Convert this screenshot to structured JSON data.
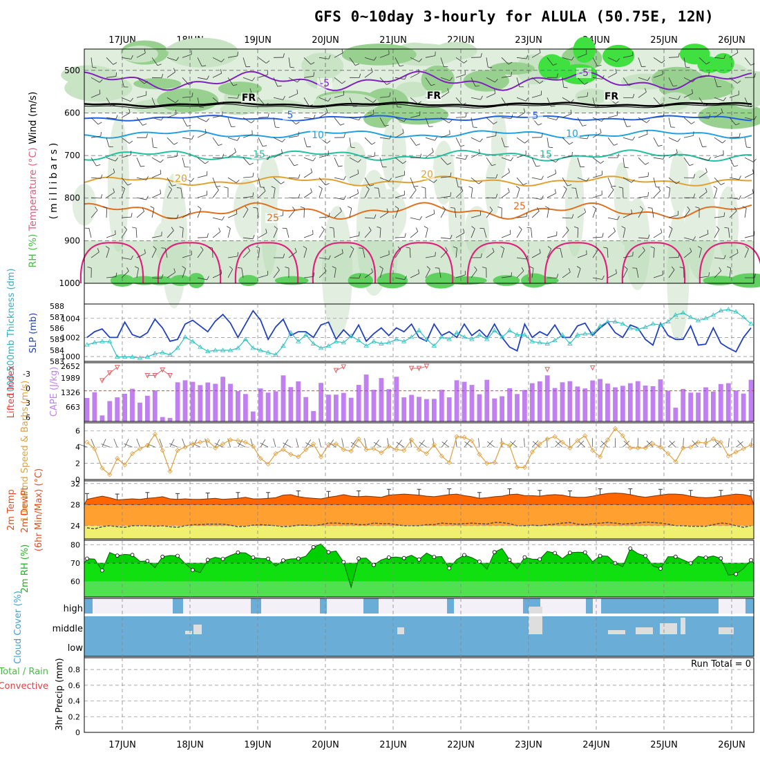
{
  "title": "GFS 0~10day 3-hourly for ALULA (50.75E, 12N)",
  "chart_data": [
    {
      "type": "heatmap",
      "panel": "upper-air",
      "ylabel_parts": [
        {
          "text": "RH (%)",
          "color": "#40c040"
        },
        {
          "text": "Temperature (°C)",
          "color": "#e06080"
        },
        {
          "text": "Wind (m/s)",
          "color": "#000000"
        },
        {
          "text": "(millibars)",
          "color": "#000000"
        }
      ],
      "yticks": [
        500,
        600,
        700,
        800,
        900,
        1000
      ],
      "ylim": [
        450,
        1000
      ],
      "x": [
        "17JUN",
        "18JUN",
        "19JUN",
        "20JUN",
        "21JUN",
        "22JUN",
        "23JUN",
        "24JUN",
        "25JUN",
        "26JUN"
      ],
      "isotherm_labels": [
        "-5",
        "-5",
        "FR",
        "FR",
        "FR",
        "5",
        "5",
        "10",
        "10",
        "15",
        "15",
        "20",
        "20",
        "25",
        "25"
      ],
      "isotherms_mb": {
        "m5": 525,
        "fr": 580,
        "p5": 612,
        "p10": 650,
        "p15": 700,
        "p20": 760,
        "p25": 830
      }
    },
    {
      "type": "line",
      "panel": "slp-thickness",
      "ylabel_left": "1000-500mb Thickness (dm)",
      "ylabel_right": "SLP (mb)",
      "thickness_ticks": [
        583,
        584,
        585,
        586,
        587,
        588
      ],
      "slp_ticks": [
        1000,
        1002,
        1004
      ],
      "series": [
        {
          "name": "SLP",
          "color": "#2040c0",
          "ylim": [
            999.5,
            1005.5
          ],
          "values": [
            1002.0,
            1002.6,
            1002.9,
            1002.0,
            1002.0,
            1003.6,
            1002.3,
            1002.0,
            1002.5,
            1003.9,
            1003.0,
            1001.6,
            1001.8,
            1003.4,
            1003.8,
            1003.2,
            1002.6,
            1003.7,
            1004.4,
            1003.5,
            1002.0,
            1003.4,
            1004.8,
            1003.8,
            1001.8,
            1003.1,
            1003.9,
            1002.2,
            1002.6,
            1002.6,
            1002.0,
            1003.3,
            1003.6,
            1001.8,
            1002.8,
            1002.0,
            1003.3,
            1001.6,
            1002.4,
            1003.0,
            1002.2,
            1003.0,
            1002.6,
            1003.4,
            1002.0,
            1001.6,
            1003.4,
            1002.2,
            1002.6,
            1002.0,
            1003.4,
            1002.2,
            1002.8,
            1002.0,
            1003.4,
            1002.0,
            1001.0,
            1000.6,
            1003.4,
            1002.0,
            1002.6,
            1002.2,
            1003.3,
            1002.0,
            1002.0,
            1003.2,
            1003.5,
            1002.2,
            1003.0,
            1003.6,
            1002.5,
            1002.0,
            1003.3,
            1003.0,
            1001.8,
            1001.2,
            1003.5,
            1002.2,
            1001.8,
            1001.8,
            1003.2,
            1001.2,
            1001.3,
            1003.0,
            1001.4,
            1000.9,
            1000.5,
            1002.0,
            1003.0
          ]
        },
        {
          "name": "1000-500mb Thickness",
          "color": "#30c0c0",
          "ylim": [
            583.0,
            588.2
          ],
          "values": [
            584.5,
            584.7,
            584.8,
            584.8,
            583.4,
            583.4,
            583.4,
            583.3,
            583.4,
            583.7,
            583.8,
            583.6,
            584.2,
            585.2,
            584.8,
            584.3,
            583.9,
            584.0,
            584.0,
            584.0,
            584.2,
            585.0,
            584.2,
            584.0,
            583.8,
            583.6,
            584.4,
            585.6,
            584.8,
            585.4,
            584.6,
            584.2,
            584.4,
            584.8,
            584.7,
            585.3,
            584.9,
            584.4,
            584.8,
            584.6,
            584.7,
            585.0,
            584.8,
            585.2,
            585.8,
            585.0,
            584.4,
            585.2,
            585.0,
            585.6,
            585.2,
            585.0,
            585.4,
            585.0,
            585.8,
            585.2,
            585.8,
            585.4,
            585.4,
            584.8,
            584.7,
            584.6,
            584.9,
            585.4,
            584.6,
            585.4,
            585.5,
            585.5,
            586.2,
            586.6,
            586.6,
            586.4,
            586.0,
            585.9,
            586.1,
            586.4,
            586.3,
            586.6,
            587.2,
            587.4,
            587.0,
            586.7,
            586.9,
            587.2,
            587.6,
            587.7,
            587.5,
            587.0,
            586.4
          ]
        }
      ]
    },
    {
      "type": "bar",
      "panel": "cape-li",
      "ylabel_left": "Lifted Index",
      "ylabel_right": "CAPE (J/kg)",
      "li_ticks": [
        "-3",
        "0",
        "3",
        "6"
      ],
      "cape_ticks": [
        "663",
        "1326",
        "1989",
        "2652"
      ],
      "series": [
        {
          "name": "CAPE",
          "color": "#c080f0",
          "ylim": [
            0,
            2652
          ],
          "values": [
            1060,
            1320,
            270,
            920,
            1090,
            1250,
            1480,
            850,
            1160,
            1400,
            200,
            160,
            1770,
            1860,
            1790,
            1640,
            1760,
            1700,
            2020,
            1700,
            1370,
            1240,
            450,
            1490,
            1300,
            1360,
            2080,
            1550,
            1810,
            1100,
            470,
            1740,
            1210,
            1210,
            1290,
            1070,
            1650,
            2120,
            1430,
            1960,
            1460,
            2020,
            1090,
            1200,
            1110,
            1010,
            1020,
            1430,
            1090,
            1860,
            1790,
            1650,
            1230,
            1880,
            1040,
            1140,
            1500,
            1240,
            1420,
            1730,
            1810,
            2080,
            1510,
            1770,
            1820,
            1580,
            1490,
            1850,
            1920,
            1710,
            1540,
            1610,
            1730,
            1820,
            1620,
            1590,
            1900,
            1390,
            620,
            1470,
            1300,
            1300,
            1540,
            1350,
            1690,
            1730,
            1400,
            1260,
            1880
          ]
        },
        {
          "name": "Lifted Index",
          "color": "#e06060",
          "ylim": [
            6,
            -5.5
          ],
          "values": [
            null,
            null,
            -2.0,
            -3.5,
            -4.6,
            null,
            null,
            null,
            -3.0,
            -3.0,
            -4.1,
            -3.0,
            null,
            null,
            null,
            null,
            null,
            null,
            null,
            null,
            null,
            null,
            null,
            null,
            null,
            null,
            null,
            null,
            null,
            null,
            null,
            null,
            null,
            -4.0,
            -4.7,
            null,
            null,
            null,
            null,
            null,
            null,
            null,
            null,
            -4.4,
            -4.4,
            -4.8,
            null,
            null,
            null,
            null,
            null,
            null,
            null,
            null,
            null,
            null,
            null,
            null,
            null,
            null,
            null,
            -4.2,
            null,
            null,
            null,
            null,
            null,
            -4.5,
            null,
            null,
            null,
            null,
            null,
            null,
            null,
            null,
            null,
            null,
            null,
            null,
            null,
            null,
            null,
            null,
            null,
            null,
            null,
            null,
            null
          ]
        }
      ]
    },
    {
      "type": "line",
      "panel": "wind-10m",
      "ylabel": "10m Wind Speed & Barbs (m/s)",
      "yticks": [
        "0",
        "2",
        "4",
        "6"
      ],
      "ylim": [
        0,
        7
      ],
      "series": [
        {
          "name": "10m Wind Speed",
          "color": "#e0a040",
          "values": [
            4.6,
            3.8,
            1.4,
            0.6,
            2.6,
            1.8,
            3.2,
            3.8,
            4.2,
            5.6,
            3.6,
            1.0,
            3.6,
            4.0,
            4.4,
            4.6,
            4.8,
            3.9,
            4.4,
            4.9,
            4.8,
            4.6,
            4.1,
            2.6,
            1.9,
            3.2,
            3.7,
            3.1,
            2.8,
            3.7,
            4.4,
            2.8,
            4.3,
            4.4,
            3.7,
            3.5,
            5.0,
            3.7,
            3.8,
            3.3,
            4.1,
            3.7,
            3.6,
            4.9,
            3.7,
            3.2,
            4.3,
            2.9,
            2.1,
            5.3,
            5.2,
            4.8,
            3.1,
            2.0,
            2.1,
            4.5,
            4.2,
            1.5,
            1.5,
            3.4,
            4.4,
            5.0,
            5.3,
            4.6,
            3.9,
            4.8,
            5.4,
            3.6,
            2.8,
            4.9,
            6.3,
            5.4,
            3.9,
            3.9,
            3.9,
            4.4,
            4.0,
            3.2,
            2.2,
            3.9,
            4.0,
            4.6,
            4.5,
            5.0,
            4.6,
            2.9,
            3.4,
            3.8,
            4.3
          ]
        }
      ]
    },
    {
      "type": "area",
      "panel": "temp-2m",
      "ylabel": "2m Temp 2m DewPt (6hr Min/Max) (°C)",
      "yticks": [
        "24",
        "28",
        "32"
      ],
      "ylim": [
        21.5,
        32.5
      ],
      "series": [
        {
          "name": "2m Temp",
          "color": "#ff6600",
          "values": [
            29.0,
            29.3,
            29.6,
            29.3,
            28.9,
            29.0,
            29.1,
            29.0,
            29.2,
            29.3,
            29.5,
            29.1,
            29.0,
            29.1,
            29.0,
            29.0,
            29.1,
            29.2,
            29.0,
            29.1,
            29.2,
            29.4,
            29.1,
            29.1,
            29.2,
            29.3,
            29.8,
            29.9,
            29.5,
            29.3,
            29.2,
            29.1,
            29.4,
            29.6,
            29.9,
            29.6,
            29.5,
            29.6,
            29.5,
            29.4,
            29.8,
            29.9,
            30.0,
            29.9,
            29.8,
            29.6,
            29.5,
            29.7,
            29.9,
            30.0,
            29.7,
            29.5,
            29.2,
            29.3,
            29.5,
            29.6,
            29.9,
            30.0,
            29.7,
            29.7,
            29.6,
            29.8,
            29.9,
            29.8,
            29.5,
            29.4,
            29.4,
            29.6,
            29.9,
            30.1,
            30.2,
            30.1,
            29.9,
            29.6,
            29.4,
            29.6,
            29.8,
            30.0,
            30.0,
            29.9,
            29.6,
            29.4,
            29.3,
            29.4,
            29.6,
            29.8,
            30.0,
            29.9,
            29.6
          ]
        },
        {
          "name": "2m DewPt",
          "color": "#505050",
          "values": [
            23.6,
            23.4,
            23.8,
            24.0,
            23.8,
            23.7,
            24.0,
            24.0,
            24.0,
            23.9,
            24.0,
            23.8,
            23.7,
            24.0,
            24.2,
            24.2,
            24.3,
            24.3,
            24.3,
            24.1,
            23.8,
            23.9,
            24.1,
            24.2,
            24.1,
            24.0,
            23.8,
            23.9,
            24.1,
            24.1,
            24.0,
            24.2,
            24.5,
            24.5,
            24.4,
            24.4,
            24.2,
            24.2,
            24.5,
            24.4,
            24.4,
            24.2,
            24.0,
            24.0,
            24.0,
            24.2,
            24.2,
            24.5,
            24.4,
            24.3,
            24.4,
            24.5,
            24.4,
            24.3,
            24.6,
            24.6,
            24.4,
            24.0,
            24.0,
            24.1,
            24.0,
            24.2,
            24.3,
            24.5,
            24.6,
            24.3,
            24.2,
            24.4,
            24.5,
            24.6,
            24.5,
            24.3,
            24.4,
            24.5,
            24.7,
            24.6,
            24.5,
            24.3,
            24.0,
            24.0,
            23.9,
            23.9,
            23.9,
            24.2,
            24.5,
            24.4,
            24.0,
            23.7,
            24.0
          ]
        }
      ]
    },
    {
      "type": "area",
      "panel": "rh-2m",
      "ylabel": "2m RH (%)",
      "yticks": [
        "60",
        "70",
        "80"
      ],
      "ylim": [
        51.5,
        82.5
      ],
      "series": [
        {
          "name": "2m RH",
          "color": "#00e000",
          "values": [
            72.5,
            72.2,
            66.0,
            75.8,
            74.1,
            74.8,
            74.5,
            71.0,
            71.2,
            67.5,
            73.5,
            74.2,
            74.0,
            69.8,
            66.2,
            64.8,
            71.8,
            73.2,
            72.3,
            74.2,
            75.8,
            75.6,
            73.1,
            72.6,
            72.4,
            68.4,
            71.5,
            72.3,
            72.5,
            73.8,
            78.8,
            80.5,
            76.0,
            76.6,
            70.6,
            56.8,
            72.6,
            72.8,
            69.0,
            71.8,
            73.1,
            73.3,
            72.8,
            74.3,
            72.0,
            75.5,
            73.4,
            73.6,
            67.2,
            72.0,
            74.4,
            73.0,
            70.8,
            66.7,
            76.0,
            78.0,
            71.8,
            67.0,
            73.2,
            72.2,
            72.1,
            76.4,
            75.5,
            72.5,
            75.7,
            76.0,
            75.9,
            70.8,
            74.0,
            73.8,
            70.0,
            68.0,
            78.0,
            75.2,
            74.0,
            68.5,
            67.0,
            73.5,
            73.5,
            71.8,
            70.0,
            73.8,
            73.0,
            73.9,
            72.6,
            63.4,
            64.0,
            67.0,
            71.7
          ]
        }
      ]
    },
    {
      "type": "heatmap",
      "panel": "cloud-cover",
      "ylabel": "Cloud Cover (%)",
      "levels": [
        "high",
        "middle",
        "low"
      ],
      "color": "#6aaed8"
    },
    {
      "type": "bar",
      "panel": "precip",
      "ylabel_left": "Total / Rain Convective",
      "ylabel_right": "3hr Precip (mm)",
      "yticks": [
        "0",
        "0.2",
        "0.4",
        "0.6",
        "0.8"
      ],
      "ylim": [
        0,
        0.95
      ],
      "annotation": "Run Total = 0",
      "series": [
        {
          "name": "Total / Rain",
          "color": "#40c040",
          "values": []
        },
        {
          "name": "Convective",
          "color": "#e04040",
          "values": []
        }
      ]
    }
  ],
  "colors": {
    "grid": "#999999",
    "frame": "#000000"
  }
}
